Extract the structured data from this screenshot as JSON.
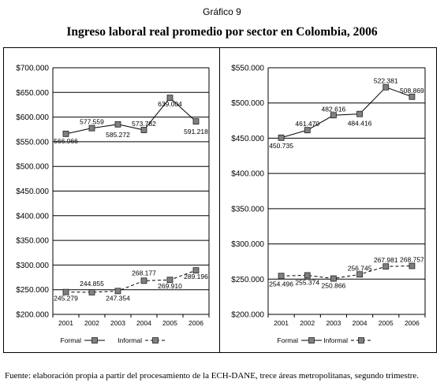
{
  "header": {
    "figure_label": "Gráfico 9",
    "title": "Ingreso laboral real promedio por sector en Colombia, 2006"
  },
  "source": "Fuente: elaboración propia a partir del procesamiento de la ECH-DANE, trece áreas metropolitanas, segundo trimestre.",
  "colors": {
    "line": "#000000",
    "marker": "#808080",
    "grid": "#000000"
  },
  "chart_data": [
    {
      "type": "line",
      "categories": [
        "2001",
        "2002",
        "2003",
        "2004",
        "2005",
        "2006"
      ],
      "ylim": [
        200000,
        700000
      ],
      "yticks": [
        "$700.000",
        "$650.000",
        "$600.000",
        "$550.000",
        "$500.000",
        "$450.000",
        "$400.000",
        "$350.000",
        "$300.000",
        "$250.000",
        "$200.000"
      ],
      "legend": "bottom",
      "series": [
        {
          "name": "Formal",
          "style": "solid",
          "values": [
            566066,
            577559,
            585272,
            573782,
            639004,
            591218
          ],
          "labels": [
            "566.066",
            "577.559",
            "585.272",
            "573.782",
            "639.004",
            "591.218"
          ]
        },
        {
          "name": "Informal",
          "style": "dashed",
          "values": [
            245279,
            244855,
            247354,
            268177,
            269910,
            289196
          ],
          "labels": [
            "245.279",
            "244.855",
            "247.354",
            "268.177",
            "269.910",
            "289.196"
          ]
        }
      ]
    },
    {
      "type": "line",
      "categories": [
        "2001",
        "2002",
        "2003",
        "2004",
        "2005",
        "2006"
      ],
      "ylim": [
        200000,
        550000
      ],
      "yticks": [
        "$550.000",
        "$500.000",
        "$450.000",
        "$400.000",
        "$350.000",
        "$300.000",
        "$250.000",
        "$200.000"
      ],
      "legend": "bottom",
      "series": [
        {
          "name": "Formal",
          "style": "solid",
          "values": [
            450735,
            461470,
            482616,
            484416,
            522381,
            508869
          ],
          "labels": [
            "450.735",
            "461.470",
            "482.616",
            "484.416",
            "522.381",
            "508.869"
          ]
        },
        {
          "name": "Informal",
          "style": "dashed",
          "values": [
            254496,
            255374,
            250866,
            256745,
            267981,
            268757
          ],
          "labels": [
            "254.496",
            "255.374",
            "250.866",
            "256.745",
            "267.981",
            "268.757"
          ]
        }
      ]
    }
  ]
}
